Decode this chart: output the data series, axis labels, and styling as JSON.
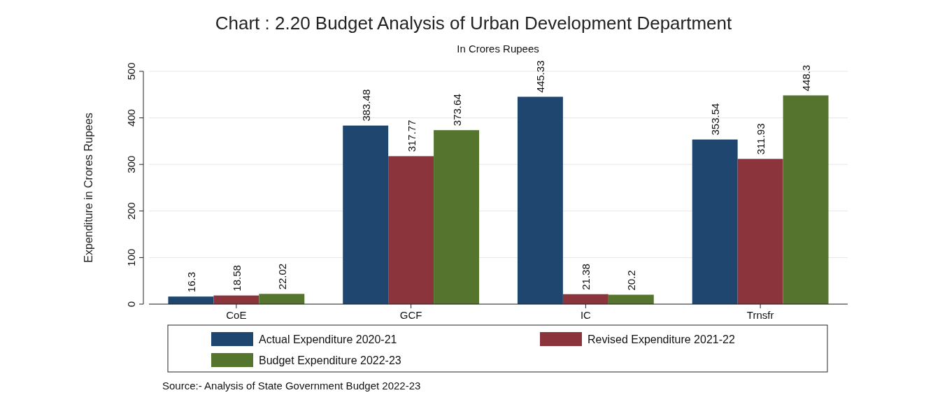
{
  "chart_data": {
    "type": "bar",
    "title": "Chart : 2.20 Budget Analysis of Urban Development Department",
    "subtitle": "In Crores Rupees",
    "ylabel": "Expenditure in Crores Rupees",
    "categories": [
      "CoE",
      "GCF",
      "IC",
      "Trnsfr"
    ],
    "series": [
      {
        "name": "Actual Expenditure 2020-21",
        "color": "#1f466f",
        "values": [
          16.3,
          383.48,
          445.33,
          353.54
        ]
      },
      {
        "name": "Revised Expenditure 2021-22",
        "color": "#8b343c",
        "values": [
          18.58,
          317.77,
          21.38,
          311.93
        ]
      },
      {
        "name": "Budget Expenditure 2022-23",
        "color": "#55752f",
        "values": [
          22.02,
          373.64,
          20.2,
          448.3
        ]
      }
    ],
    "ylim": [
      0,
      500
    ],
    "yticks": [
      0,
      100,
      200,
      300,
      400,
      500
    ],
    "grid": "y",
    "legend": "bottom",
    "data_labels": true,
    "annotations": [
      "Source:- Analysis of State Government Budget 2022-23"
    ]
  }
}
